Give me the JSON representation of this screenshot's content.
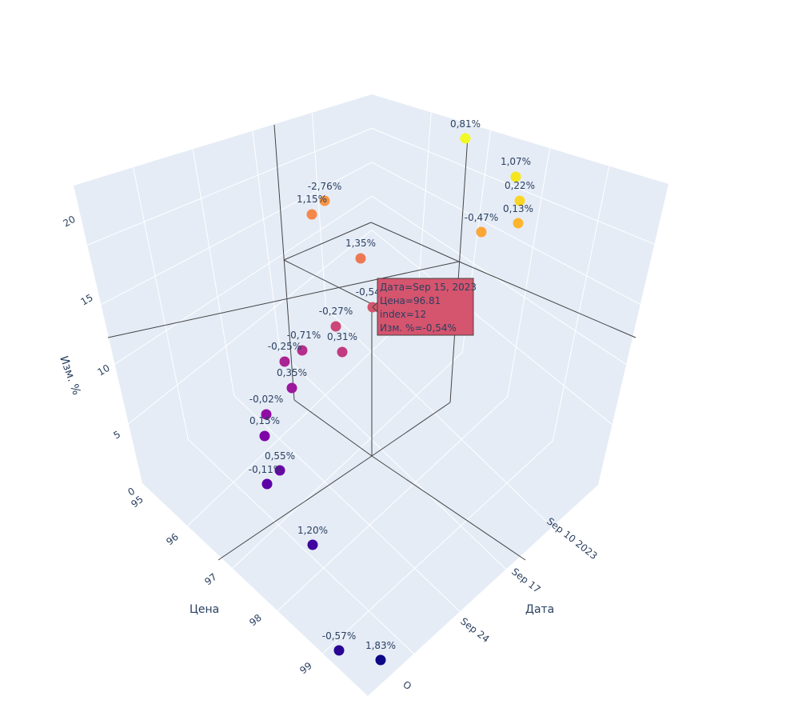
{
  "chart_data": {
    "type": "scatter3d",
    "axes": {
      "x": {
        "title": "Дата",
        "ticks": [
          "Sep 10 2023",
          "Sep 17",
          "Sep 24",
          "O"
        ]
      },
      "y": {
        "title": "Цена",
        "ticks": [
          "95",
          "96",
          "97",
          "98",
          "99"
        ]
      },
      "z": {
        "title": "Изм. %",
        "ticks": [
          "0",
          "5",
          "10",
          "15",
          "20"
        ],
        "range": [
          0,
          22
        ]
      }
    },
    "colorscale": "plasma",
    "points": [
      {
        "label": "1,83%",
        "value": 1.83,
        "color": "#0d0887"
      },
      {
        "label": "-0,57%",
        "value": -0.57,
        "color": "#2a0593"
      },
      {
        "label": "1,20%",
        "value": 1.2,
        "color": "#41049d"
      },
      {
        "label": "-0,11%",
        "value": -0.11,
        "color": "#5c01a6"
      },
      {
        "label": "0,55%",
        "value": 0.55,
        "color": "#6a00a8"
      },
      {
        "label": "0,15%",
        "value": 0.15,
        "color": "#7e03a8"
      },
      {
        "label": "-0,02%",
        "value": -0.02,
        "color": "#8f0da4"
      },
      {
        "label": "0,35%",
        "value": 0.35,
        "color": "#9c179e"
      },
      {
        "label": "-0,25%",
        "value": -0.25,
        "color": "#aa2395"
      },
      {
        "label": "-0,71%",
        "value": -0.71,
        "color": "#b52f8c"
      },
      {
        "label": "0,31%",
        "value": 0.31,
        "color": "#c13b82"
      },
      {
        "label": "-0,27%",
        "value": -0.27,
        "color": "#cc4778"
      },
      {
        "label": "-0,54%",
        "value": -0.54,
        "color": "#d5546e",
        "hovered": true
      },
      {
        "label": "1,35%",
        "value": 1.35,
        "color": "#ed7953"
      },
      {
        "label": "-2,76%",
        "value": -2.76,
        "color": "#f89540"
      },
      {
        "label": "-0,47%",
        "value": -0.47,
        "color": "#fca636"
      },
      {
        "label": "0,13%",
        "value": 0.13,
        "color": "#fdb42f"
      },
      {
        "label": "0,22%",
        "value": 0.22,
        "color": "#fbd524"
      },
      {
        "label": "1,07%",
        "value": 1.07,
        "color": "#f4e61e"
      },
      {
        "label": "0,81%",
        "value": 0.81,
        "color": "#f0f921"
      },
      {
        "label": "1,15%",
        "value": 1.15,
        "color": "#f48849"
      }
    ],
    "hover": {
      "lines": [
        "Дата=Sep 15, 2023",
        "Цена=96.81",
        "index=12",
        "Изм. %=-0,54%"
      ],
      "color": "#d5546e"
    }
  }
}
